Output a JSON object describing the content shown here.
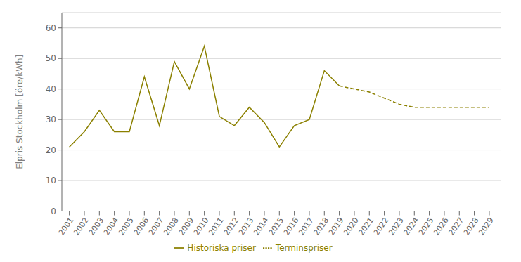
{
  "chart_data": {
    "type": "line",
    "ylabel": "Elpris Stockholm [öre/kWh]",
    "series": [
      {
        "name": "Historiska priser",
        "color": "#8B8000",
        "line_style": "solid",
        "x": [
          2001,
          2002,
          2003,
          2004,
          2005,
          2006,
          2007,
          2008,
          2009,
          2010,
          2011,
          2012,
          2013,
          2014,
          2015,
          2016,
          2017,
          2018,
          2019
        ],
        "values": [
          21,
          26,
          33,
          26,
          26,
          44,
          28,
          49,
          40,
          54,
          31,
          28,
          34,
          29,
          21,
          28,
          30,
          46,
          41
        ]
      },
      {
        "name": "Terminspriser",
        "color": "#8B8000",
        "line_style": "dashed",
        "x": [
          2019,
          2020,
          2021,
          2022,
          2023,
          2024,
          2025,
          2026,
          2027,
          2028,
          2029
        ],
        "values": [
          41,
          40,
          39,
          37,
          35,
          34,
          34,
          34,
          34,
          34,
          34
        ]
      }
    ],
    "xlim": [
      2000.5,
      2029.8
    ],
    "xticks": [
      2001,
      2002,
      2003,
      2004,
      2005,
      2006,
      2007,
      2008,
      2009,
      2010,
      2011,
      2012,
      2013,
      2014,
      2015,
      2016,
      2017,
      2018,
      2019,
      2020,
      2021,
      2022,
      2023,
      2024,
      2025,
      2026,
      2027,
      2028,
      2029
    ],
    "ylim": [
      0,
      65
    ],
    "yticks": [
      0,
      10,
      20,
      30,
      40,
      50,
      60
    ],
    "grid": "y",
    "legend": "bottom"
  }
}
